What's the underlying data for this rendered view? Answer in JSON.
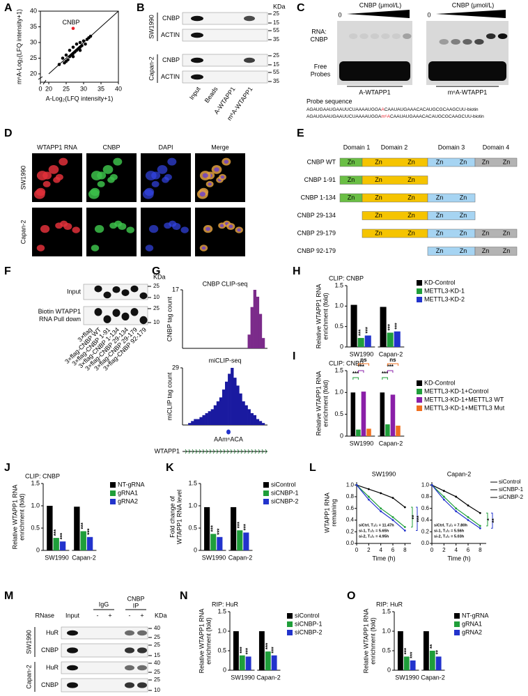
{
  "A": {
    "label": "A",
    "chart_data": {
      "type": "scatter",
      "xlabel": "A-Log₂(LFQ intensity+1)",
      "ylabel": "m⁶A-Log₂(LFQ intensity+1)",
      "xlim": [
        0,
        40
      ],
      "ylim": [
        0,
        40
      ],
      "xticks": [
        0,
        20,
        25,
        30,
        35,
        40
      ],
      "yticks": [
        20,
        25,
        30,
        35,
        40
      ],
      "color": "#000000",
      "x": [
        23,
        24,
        24.5,
        25,
        25.5,
        26,
        26,
        26.5,
        27,
        27,
        27.5,
        28,
        28,
        28.5,
        29,
        29,
        29.5,
        30,
        30.5,
        31,
        31.5,
        32,
        25,
        27,
        29
      ],
      "values": [
        23,
        25,
        23.5,
        26,
        24.5,
        27.5,
        25.5,
        26,
        28.5,
        26.5,
        27,
        29.5,
        27.5,
        28,
        30,
        28.5,
        29,
        30.5,
        29.5,
        31,
        31.5,
        32,
        24,
        25.5,
        27.5
      ],
      "highlight": {
        "label": "CNBP",
        "x": 27,
        "value": 34.5,
        "color": "#e8202a"
      }
    }
  },
  "B": {
    "label": "B",
    "unit": "KDa",
    "cell_lines": [
      "SW1990",
      "Capan-2"
    ],
    "rows": [
      "CNBP",
      "ACTIN",
      "CNBP",
      "ACTIN"
    ],
    "markers": [
      [
        25,
        15
      ],
      [
        55,
        35
      ],
      [
        25,
        15
      ],
      [
        55,
        35
      ]
    ],
    "lanes": [
      "Input",
      "Beads",
      "A-WTAPP1",
      "m⁶A-WTAPP1"
    ]
  },
  "C": {
    "label": "C",
    "gels": [
      {
        "title": "CNBP (μmol/L)",
        "start": 0,
        "name": "A-WTAPP1"
      },
      {
        "title": "CNBP (μmol/L)",
        "start": 0,
        "name": "m⁶A-WTAPP1"
      }
    ],
    "band": [
      "RNA:",
      "CNBP"
    ],
    "free": [
      "Free",
      "Probes"
    ],
    "probe_title": "Probe sequence",
    "probes": [
      {
        "prefix": "AGAUGAAUGAAUUCUAAAAUGGA",
        "mod": "A",
        "suffix": "CAAUAUGAAACACAUGCGCAAGCUU-biotin"
      },
      {
        "prefix": "AGAUGAAUGAAUUCUAAAAUGGA",
        "mod": "m⁶A",
        "suffix": "CAAUAUGAAACACAUGCGCAAGCUU-biotin"
      }
    ]
  },
  "D": {
    "label": "D",
    "columns": [
      "WTAPP1 RNA",
      "CNBP",
      "DAPI",
      "Merge"
    ],
    "rows": [
      "SW1990",
      "Capan-2"
    ]
  },
  "E": {
    "label": "E",
    "domains": [
      "Domain 1",
      "Domain 2",
      "Domain 3",
      "Domain 4"
    ],
    "constructs": [
      {
        "name": "CNBP WT",
        "segments": [
          [
            "Zn"
          ],
          [
            "Zn",
            "Zn"
          ],
          [
            "Zn",
            "Zn"
          ],
          [
            "Zn",
            "Zn"
          ]
        ]
      },
      {
        "name": "CNBP 1-91",
        "segments": [
          [
            "Zn"
          ],
          [
            "Zn",
            "Zn"
          ],
          null,
          null
        ]
      },
      {
        "name": "CNBP 1-134",
        "segments": [
          [
            "Zn"
          ],
          [
            "Zn",
            "Zn"
          ],
          [
            "Zn",
            "Zn"
          ],
          null
        ]
      },
      {
        "name": "CNBP 29-134",
        "segments": [
          null,
          [
            "Zn",
            "Zn"
          ],
          [
            "Zn",
            "Zn"
          ],
          null
        ]
      },
      {
        "name": "CNBP 29-179",
        "segments": [
          null,
          [
            "Zn",
            "Zn"
          ],
          [
            "Zn",
            "Zn"
          ],
          [
            "Zn",
            "Zn"
          ]
        ]
      },
      {
        "name": "CNBP 92-179",
        "segments": [
          null,
          null,
          [
            "Zn",
            "Zn"
          ],
          [
            "Zn",
            "Zn"
          ]
        ]
      }
    ]
  },
  "F": {
    "label": "F",
    "unit": "KDa",
    "rows": [
      {
        "lines": [
          "Input"
        ],
        "markers": [
          25,
          10
        ]
      },
      {
        "lines": [
          "Biotin WTAPP1",
          "RNA Pull down"
        ],
        "markers": [
          25,
          10
        ]
      }
    ],
    "lanes": [
      "3×flag",
      "3×flag-CNBP WT",
      "3×flag-CNBP 1-91",
      "3×flag-CNBP 1-134",
      "3×flag-CNBP 29-134",
      "3×flag-CNBP 29-179",
      "3×flag-CNBP 92-179"
    ]
  },
  "G": {
    "label": "G",
    "tracks": [
      {
        "title": "CNBP CLIP-seq",
        "ylabel": "CNBP tag count",
        "ylim": [
          0,
          17
        ],
        "yticks": [
          17
        ],
        "color": "#7b2b8a",
        "values": [
          0,
          0,
          0,
          0,
          0,
          0,
          0,
          0,
          0,
          0,
          0,
          0,
          0,
          0,
          0,
          0,
          0,
          0,
          0,
          0,
          0,
          0,
          0,
          4,
          12,
          17,
          15,
          10,
          3,
          0
        ]
      },
      {
        "title": "miCLIP-seq",
        "ylabel": "miCLIP tag count",
        "ylim": [
          0,
          29
        ],
        "yticks": [
          29
        ],
        "color": "#1a1aa0",
        "values": [
          0,
          0,
          1,
          2,
          3,
          3,
          4,
          5,
          6,
          7,
          8,
          10,
          12,
          14,
          18,
          22,
          26,
          29,
          24,
          20,
          16,
          12,
          10,
          8,
          6,
          5,
          3,
          2,
          1,
          0
        ]
      }
    ],
    "site": "AAm⁶ACA",
    "gene": "WTAPP1"
  },
  "H": {
    "label": "H",
    "chart_data": {
      "type": "bar",
      "title": "CLIP: CNBP",
      "ylabel": [
        "Relative WTAPP1 RNA",
        "enrichment (fold)"
      ],
      "categories": [
        "SW1990",
        "Capan-2"
      ],
      "ylim": [
        0,
        1.5
      ],
      "yticks": [
        0,
        0.5,
        {
          "value": 1,
          "label": "1.0"
        },
        1.5
      ],
      "series": [
        {
          "name": "KD-Control",
          "color": "#000000",
          "values": [
            1.03,
            0.98
          ]
        },
        {
          "name": "METTL3-KD-1",
          "color": "#1f9e3a",
          "values": [
            0.22,
            0.35
          ],
          "stars": [
            "***",
            "***"
          ]
        },
        {
          "name": "METTL3-KD-2",
          "color": "#2233cc",
          "values": [
            0.28,
            0.38
          ],
          "stars": [
            "***",
            "***"
          ]
        }
      ]
    }
  },
  "I": {
    "label": "I",
    "chart_data": {
      "type": "bar",
      "title": "CLIP:  CNBP",
      "ylabel": [
        "Relative WTAPP1 RNA",
        "enrichment (fold)"
      ],
      "categories": [
        "SW1990",
        "Capan-2"
      ],
      "ylim": [
        0,
        1.5
      ],
      "yticks": [
        0,
        0.5,
        {
          "value": 1,
          "label": "1.0"
        },
        1.5
      ],
      "series": [
        {
          "name": "KD-Control",
          "color": "#000000",
          "values": [
            1.0,
            1.0
          ]
        },
        {
          "name": "METTL3-KD-1+Control",
          "color": "#1f9e3a",
          "values": [
            0.15,
            0.27
          ]
        },
        {
          "name": "METTL3-KD-1+METTL3 WT",
          "color": "#8a1fa8",
          "values": [
            1.02,
            0.95
          ]
        },
        {
          "name": "METTL3-KD-1+METTL3 Mut",
          "color": "#f07020",
          "values": [
            0.17,
            0.24
          ]
        }
      ],
      "brackets": [
        [
          "***",
          "***",
          "ns"
        ],
        [
          "***",
          "***",
          "ns"
        ]
      ]
    }
  },
  "J": {
    "label": "J",
    "chart_data": {
      "type": "bar",
      "title": "CLIP: CNBP",
      "ylabel": [
        "Relative WTAPP1 RNA",
        "enrichment (fold)"
      ],
      "categories": [
        "SW1990",
        "Capan-2"
      ],
      "ylim": [
        0,
        1.5
      ],
      "yticks": [
        0,
        0.5,
        {
          "value": 1,
          "label": "1.0"
        },
        1.5
      ],
      "series": [
        {
          "name": "NT-gRNA",
          "color": "#000000",
          "values": [
            1.0,
            0.98
          ]
        },
        {
          "name": "gRNA1",
          "color": "#1f9e3a",
          "values": [
            0.28,
            0.43
          ],
          "stars": [
            "***",
            "***"
          ]
        },
        {
          "name": "gRNA2",
          "color": "#2233cc",
          "values": [
            0.2,
            0.3
          ],
          "stars": [
            "***",
            "***"
          ]
        }
      ]
    }
  },
  "K": {
    "label": "K",
    "chart_data": {
      "type": "bar",
      "ylabel": [
        "Fold change of",
        "WTAPP1 RNA level"
      ],
      "categories": [
        "SW1990",
        "Capan-2"
      ],
      "ylim": [
        0,
        1.5
      ],
      "yticks": [
        0,
        0.5,
        {
          "value": 1,
          "label": "1.0"
        },
        1.5
      ],
      "series": [
        {
          "name": "siControl",
          "color": "#000000",
          "values": [
            0.97,
            0.97
          ]
        },
        {
          "name": "siCNBP-1",
          "color": "#1f9e3a",
          "values": [
            0.37,
            0.45
          ],
          "stars": [
            "***",
            "***"
          ]
        },
        {
          "name": "siCNBP-2",
          "color": "#2233cc",
          "values": [
            0.3,
            0.4
          ],
          "stars": [
            "***",
            "***"
          ]
        }
      ]
    }
  },
  "L": {
    "label": "L",
    "chart_data": {
      "type": "line",
      "xlabel": "Time (h)",
      "ylabel": [
        "WTAPP1 RNA",
        "remaining"
      ],
      "x": [
        0,
        2,
        4,
        6,
        8
      ],
      "xlim": [
        0,
        9
      ],
      "xticks": [
        0,
        2,
        4,
        6,
        8
      ],
      "ylim": [
        0,
        1.05
      ],
      "yticks": [
        {
          "value": 0,
          "label": "0.0"
        },
        0.2,
        0.4,
        0.6,
        0.8,
        {
          "value": 1,
          "label": "1.0"
        }
      ],
      "series": [
        {
          "name": "siControl",
          "color": "#000000"
        },
        {
          "name": "siCNBP-1",
          "color": "#1f9e3a"
        },
        {
          "name": "siCNBP-2",
          "color": "#2233cc"
        }
      ],
      "panels": [
        {
          "title": "SW1990",
          "values": [
            [
              1,
              0.93,
              0.86,
              0.78,
              0.62
            ],
            [
              1,
              0.8,
              0.6,
              0.45,
              0.28
            ],
            [
              1,
              0.75,
              0.55,
              0.4,
              0.22
            ]
          ],
          "half_lives": [
            "siCtrl, T₁/₂ = 11.47h",
            "si-1, T₁/₂ = 5.65h",
            "si-2, T₁/₂ = 4.95h"
          ],
          "stars": [
            "**",
            "***"
          ]
        },
        {
          "title": "Capan-2",
          "values": [
            [
              1,
              0.9,
              0.8,
              0.65,
              0.52
            ],
            [
              1,
              0.8,
              0.6,
              0.45,
              0.3
            ],
            [
              1,
              0.75,
              0.55,
              0.4,
              0.26
            ]
          ],
          "half_lives": [
            "siCtrl, T₁/₂ = 7.80h",
            "si-1, T₁/₂ = 5.56h",
            "si-2, T₁/₂ = 5.03h"
          ],
          "stars": [
            "*",
            "**"
          ]
        }
      ]
    }
  },
  "M": {
    "label": "M",
    "unit": "KDa",
    "treatment": "RNase",
    "signs": [
      "-",
      "+",
      "-",
      "+"
    ],
    "input": "Input",
    "igg": "IgG",
    "ip": [
      "CNBP",
      "IP"
    ],
    "cell_lines": [
      "SW1990",
      "Capan-2"
    ],
    "rows": [
      {
        "name": "HuR",
        "markers": [
          40,
          25
        ]
      },
      {
        "name": "CNBP",
        "markers": [
          25,
          15
        ]
      },
      {
        "name": "HuR",
        "markers": [
          40,
          25
        ]
      },
      {
        "name": "CNBP",
        "markers": [
          25,
          10
        ]
      }
    ]
  },
  "N": {
    "label": "N",
    "chart_data": {
      "type": "bar",
      "title": "RIP: HuR",
      "ylabel": [
        "Relative WTAPP1 RNA",
        "enrichment (fold)"
      ],
      "categories": [
        "SW1990",
        "Capan-2"
      ],
      "ylim": [
        0,
        1.5
      ],
      "yticks": [
        0,
        0.5,
        {
          "value": 1,
          "label": "1.0"
        },
        1.5
      ],
      "series": [
        {
          "name": "siControl",
          "color": "#000000",
          "values": [
            1.0,
            1.0
          ]
        },
        {
          "name": "siCNBP-1",
          "color": "#1f9e3a",
          "values": [
            0.38,
            0.48
          ],
          "stars": [
            "***",
            "***"
          ]
        },
        {
          "name": "siCNBP-2",
          "color": "#2233cc",
          "values": [
            0.35,
            0.38
          ],
          "stars": [
            "***",
            "***"
          ]
        }
      ]
    }
  },
  "O": {
    "label": "O",
    "chart_data": {
      "type": "bar",
      "title": "RIP: HuR",
      "ylabel": [
        "Relative WTAPP1 RNA",
        "enrichment (fold)"
      ],
      "categories": [
        "SW1990",
        "Capan-2"
      ],
      "ylim": [
        0,
        1.5
      ],
      "yticks": [
        0,
        0.5,
        {
          "value": 1,
          "label": "1.0"
        },
        1.5
      ],
      "series": [
        {
          "name": "NT-gRNA",
          "color": "#000000",
          "values": [
            1.0,
            1.0
          ]
        },
        {
          "name": "gRNA1",
          "color": "#1f9e3a",
          "values": [
            0.35,
            0.5
          ],
          "stars": [
            "***",
            "**"
          ]
        },
        {
          "name": "gRNA2",
          "color": "#2233cc",
          "values": [
            0.25,
            0.35
          ],
          "stars": [
            "***",
            "**"
          ]
        }
      ]
    }
  }
}
